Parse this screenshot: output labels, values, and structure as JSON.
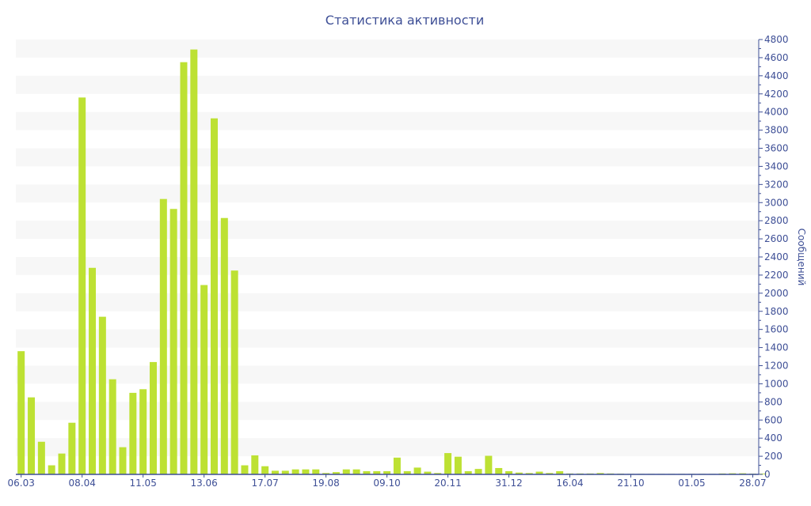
{
  "chart_data": {
    "type": "bar",
    "title": "Статистика активности",
    "ylabel": "Сообщений",
    "xlabel": "",
    "ylim": [
      0,
      4800
    ],
    "ytick_step": 200,
    "grid": "alternating horizontal bands",
    "y_axis_position": "right",
    "colors": {
      "bar": "#bde133",
      "axis": "#3e4f96",
      "band": "#f7f7f7"
    },
    "x_tick_labels": [
      "06.03",
      "08.04",
      "11.05",
      "13.06",
      "17.07",
      "19.08",
      "09.10",
      "20.11",
      "31.12",
      "16.04",
      "21.10",
      "01.05",
      "28.07"
    ],
    "x_tick_every": 6,
    "values": [
      1360,
      850,
      360,
      100,
      230,
      570,
      4160,
      2280,
      1740,
      1050,
      300,
      900,
      940,
      1240,
      3040,
      2930,
      4550,
      4690,
      2090,
      3930,
      2830,
      2250,
      100,
      210,
      90,
      40,
      40,
      55,
      55,
      55,
      15,
      25,
      55,
      55,
      35,
      35,
      35,
      185,
      35,
      75,
      30,
      15,
      235,
      195,
      35,
      60,
      205,
      70,
      35,
      20,
      15,
      30,
      15,
      35,
      10,
      10,
      10,
      15,
      10,
      8,
      6,
      6,
      6,
      6,
      6,
      6,
      6,
      6,
      6,
      10,
      12,
      12,
      8,
      8
    ]
  }
}
